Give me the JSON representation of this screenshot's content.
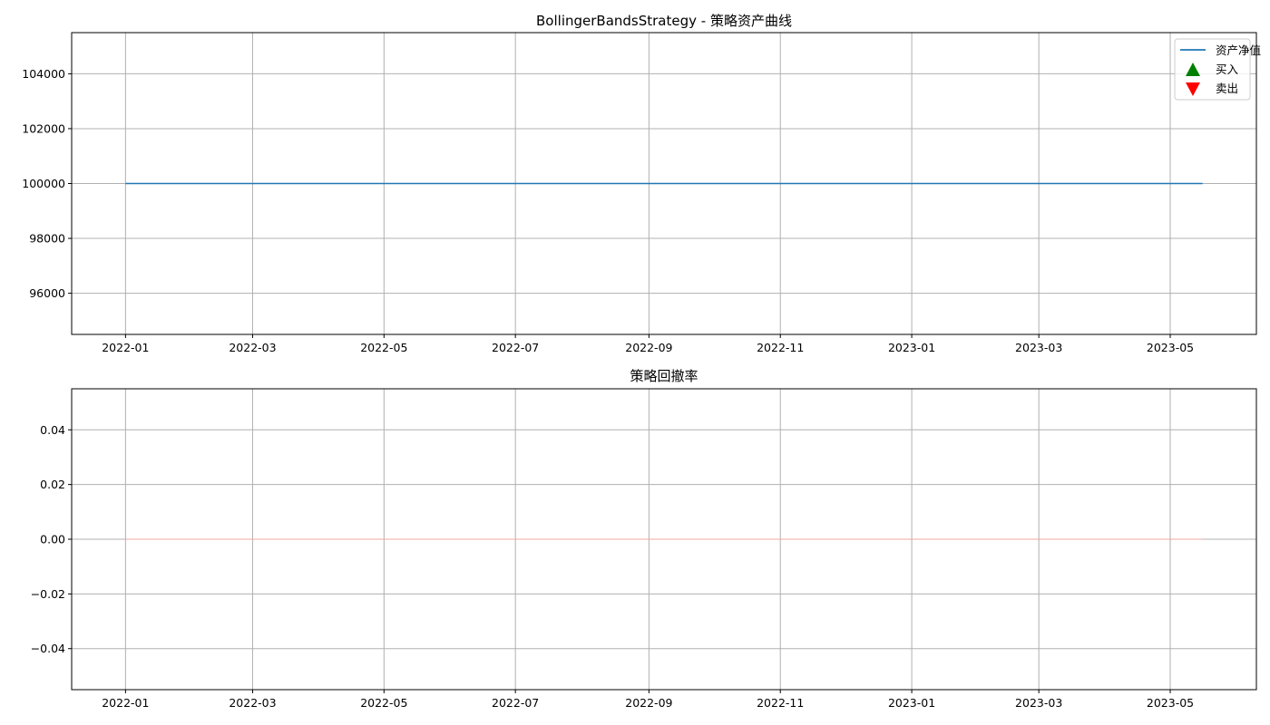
{
  "chart_data": [
    {
      "type": "line",
      "title": "BollingerBandsStrategy - 策略资产曲线",
      "xlabel": "",
      "ylabel": "",
      "xlim": [
        "2021-12-07",
        "2023-06-10"
      ],
      "ylim": [
        94500,
        105500
      ],
      "x_ticks": [
        "2022-01",
        "2022-03",
        "2022-05",
        "2022-07",
        "2022-09",
        "2022-11",
        "2023-01",
        "2023-03",
        "2023-05"
      ],
      "y_ticks": [
        96000,
        98000,
        100000,
        102000,
        104000
      ],
      "grid": true,
      "legend_position": "top-right",
      "series": [
        {
          "name": "资产净值",
          "type": "line",
          "color": "#1f77b4",
          "x": [
            "2022-01-01",
            "2023-05-16"
          ],
          "y": [
            100000,
            100000
          ]
        },
        {
          "name": "买入",
          "type": "scatter",
          "marker": "triangle-up",
          "color": "#008000",
          "x": [],
          "y": []
        },
        {
          "name": "卖出",
          "type": "scatter",
          "marker": "triangle-down",
          "color": "#ff0000",
          "x": [],
          "y": []
        }
      ]
    },
    {
      "type": "area",
      "title": "策略回撤率",
      "xlabel": "",
      "ylabel": "",
      "xlim": [
        "2021-12-07",
        "2023-06-10"
      ],
      "ylim": [
        -0.055,
        0.055
      ],
      "x_ticks": [
        "2022-01",
        "2022-03",
        "2022-05",
        "2022-07",
        "2022-09",
        "2022-11",
        "2023-01",
        "2023-03",
        "2023-05"
      ],
      "y_ticks": [
        "−0.04",
        "−0.02",
        "0.00",
        "0.02",
        "0.04"
      ],
      "y_tick_values": [
        -0.04,
        -0.02,
        0.0,
        0.02,
        0.04
      ],
      "grid": true,
      "series": [
        {
          "type": "area",
          "color": "#f4a6a6",
          "x": [
            "2022-01-01",
            "2023-05-16"
          ],
          "y": [
            0,
            0
          ]
        }
      ]
    }
  ]
}
